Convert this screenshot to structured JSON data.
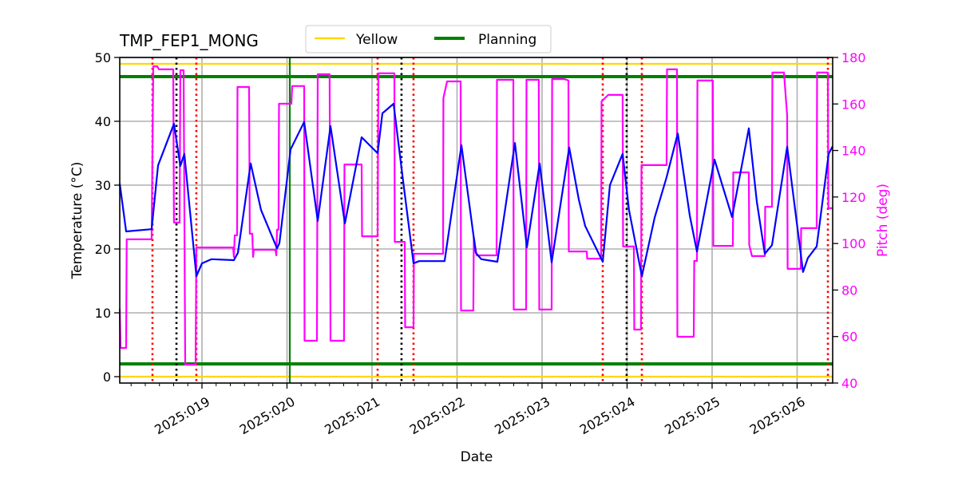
{
  "chart_data": {
    "type": "line",
    "title": "TMP_FEP1_MONG",
    "xlabel": "Date",
    "ylabel": "Temperature (°C)",
    "y2label": "Pitch (deg)",
    "xlim": [
      18.033,
      26.418
    ],
    "ylim": [
      -1,
      50
    ],
    "y2lim": [
      40,
      180
    ],
    "xticks": [
      19,
      20,
      21,
      22,
      23,
      24,
      25,
      26
    ],
    "xtick_labels": [
      "2025:019",
      "2025:020",
      "2025:021",
      "2025:022",
      "2025:023",
      "2025:024",
      "2025:025",
      "2025:026"
    ],
    "yticks": [
      0,
      10,
      20,
      30,
      40,
      50
    ],
    "y2ticks": [
      40,
      60,
      80,
      100,
      120,
      140,
      160,
      180
    ],
    "grid": true,
    "legend": {
      "placement": "top-center",
      "entries": [
        {
          "label": "Yellow",
          "color": "#ffd700"
        },
        {
          "label": "Planning",
          "color": "#008000"
        }
      ]
    },
    "limits": [
      {
        "name": "Yellow",
        "values": [
          49,
          0
        ],
        "color": "#ffd700"
      },
      {
        "name": "Planning",
        "values": [
          47,
          2
        ],
        "color": "#008000"
      }
    ],
    "vlines": [
      {
        "x": 18.418,
        "color": "#ff0000",
        "style": "dotted"
      },
      {
        "x": 18.934,
        "color": "#ff0000",
        "style": "dotted"
      },
      {
        "x": 21.066,
        "color": "#ff0000",
        "style": "dotted"
      },
      {
        "x": 21.488,
        "color": "#ff0000",
        "style": "dotted"
      },
      {
        "x": 23.714,
        "color": "#ff0000",
        "style": "dotted"
      },
      {
        "x": 24.174,
        "color": "#ff0000",
        "style": "dotted"
      },
      {
        "x": 26.362,
        "color": "#ff0000",
        "style": "dotted"
      },
      {
        "x": 18.7,
        "color": "#000000",
        "style": "dotted"
      },
      {
        "x": 21.347,
        "color": "#000000",
        "style": "dotted"
      },
      {
        "x": 23.995,
        "color": "#000000",
        "style": "dotted"
      },
      {
        "x": 20.033,
        "color": "#008000",
        "style": "solid"
      }
    ],
    "series": [
      {
        "axis": "left",
        "color": "#0000ff",
        "points": [
          [
            18.033,
            30.25
          ],
          [
            18.108,
            22.75
          ],
          [
            18.408,
            23.1
          ],
          [
            18.484,
            33.1
          ],
          [
            18.671,
            39.6
          ],
          [
            18.746,
            33
          ],
          [
            18.793,
            34.9
          ],
          [
            18.934,
            15.75
          ],
          [
            19.0,
            17.75
          ],
          [
            19.113,
            18.4
          ],
          [
            19.376,
            18.25
          ],
          [
            19.423,
            19.4
          ],
          [
            19.573,
            33.4
          ],
          [
            19.695,
            26.1
          ],
          [
            19.883,
            20.1
          ],
          [
            19.911,
            20.9
          ],
          [
            20.042,
            35.6
          ],
          [
            20.202,
            39.9
          ],
          [
            20.362,
            24.4
          ],
          [
            20.512,
            39.25
          ],
          [
            20.681,
            24
          ],
          [
            20.878,
            37.5
          ],
          [
            21.066,
            35
          ],
          [
            21.122,
            41.25
          ],
          [
            21.254,
            42.75
          ],
          [
            21.366,
            30.6
          ],
          [
            21.488,
            17.75
          ],
          [
            21.554,
            18.1
          ],
          [
            21.854,
            18.1
          ],
          [
            22.052,
            36.25
          ],
          [
            22.221,
            19.4
          ],
          [
            22.286,
            18.4
          ],
          [
            22.474,
            18
          ],
          [
            22.681,
            36.6
          ],
          [
            22.822,
            20.25
          ],
          [
            22.972,
            33.4
          ],
          [
            23.113,
            17.9
          ],
          [
            23.319,
            35.9
          ],
          [
            23.432,
            27.75
          ],
          [
            23.507,
            23.6
          ],
          [
            23.714,
            18
          ],
          [
            23.798,
            30
          ],
          [
            23.948,
            34.9
          ],
          [
            24.023,
            26.1
          ],
          [
            24.174,
            15.75
          ],
          [
            24.324,
            24.9
          ],
          [
            24.465,
            31.25
          ],
          [
            24.596,
            38.1
          ],
          [
            24.737,
            25.25
          ],
          [
            24.822,
            19.6
          ],
          [
            25.028,
            34
          ],
          [
            25.235,
            25
          ],
          [
            25.432,
            38.9
          ],
          [
            25.526,
            27.4
          ],
          [
            25.62,
            19.25
          ],
          [
            25.704,
            20.6
          ],
          [
            25.883,
            36
          ],
          [
            26.07,
            16.4
          ],
          [
            26.127,
            18.6
          ],
          [
            26.23,
            20.4
          ],
          [
            26.371,
            34.9
          ],
          [
            26.418,
            36.1
          ]
        ]
      },
      {
        "axis": "right",
        "color": "#ff00ff",
        "points": [
          [
            18.033,
            71.9
          ],
          [
            18.042,
            55.1
          ],
          [
            18.108,
            55.1
          ],
          [
            18.115,
            101.8
          ],
          [
            18.408,
            101.8
          ],
          [
            18.427,
            176.2
          ],
          [
            18.474,
            176.2
          ],
          [
            18.493,
            174.9
          ],
          [
            18.662,
            174.9
          ],
          [
            18.671,
            109
          ],
          [
            18.737,
            109
          ],
          [
            18.746,
            174.5
          ],
          [
            18.784,
            174.5
          ],
          [
            18.803,
            47.9
          ],
          [
            18.925,
            47.9
          ],
          [
            18.934,
            98.3
          ],
          [
            19.366,
            98.3
          ],
          [
            19.376,
            94.2
          ],
          [
            19.385,
            103.5
          ],
          [
            19.413,
            103.5
          ],
          [
            19.418,
            167.3
          ],
          [
            19.554,
            167.3
          ],
          [
            19.563,
            104.2
          ],
          [
            19.592,
            104.2
          ],
          [
            19.601,
            94.2
          ],
          [
            19.61,
            97.3
          ],
          [
            19.864,
            97.3
          ],
          [
            19.874,
            94.9
          ],
          [
            19.883,
            105.9
          ],
          [
            19.901,
            105.9
          ],
          [
            19.906,
            160.1
          ],
          [
            20.052,
            160.1
          ],
          [
            20.061,
            167.7
          ],
          [
            20.202,
            167.7
          ],
          [
            20.207,
            58.2
          ],
          [
            20.352,
            58.2
          ],
          [
            20.362,
            172.8
          ],
          [
            20.502,
            172.8
          ],
          [
            20.512,
            58.2
          ],
          [
            20.671,
            58.2
          ],
          [
            20.676,
            134
          ],
          [
            20.878,
            134
          ],
          [
            20.883,
            103.1
          ],
          [
            21.066,
            103.1
          ],
          [
            21.075,
            173.2
          ],
          [
            21.263,
            173.2
          ],
          [
            21.268,
            100.7
          ],
          [
            21.385,
            100.7
          ],
          [
            21.39,
            64
          ],
          [
            21.488,
            64
          ],
          [
            21.493,
            95.6
          ],
          [
            21.836,
            95.6
          ],
          [
            21.84,
            162.5
          ],
          [
            21.883,
            169.7
          ],
          [
            22.042,
            169.7
          ],
          [
            22.047,
            71.2
          ],
          [
            22.192,
            71.2
          ],
          [
            22.197,
            102.8
          ],
          [
            22.23,
            94.9
          ],
          [
            22.465,
            94.9
          ],
          [
            22.47,
            170.4
          ],
          [
            22.662,
            170.4
          ],
          [
            22.667,
            71.6
          ],
          [
            22.812,
            71.6
          ],
          [
            22.817,
            170.4
          ],
          [
            22.962,
            170.4
          ],
          [
            22.967,
            71.6
          ],
          [
            23.113,
            71.6
          ],
          [
            23.118,
            170.7
          ],
          [
            23.263,
            170.7
          ],
          [
            23.31,
            170.1
          ],
          [
            23.315,
            96.6
          ],
          [
            23.526,
            96.6
          ],
          [
            23.531,
            93.5
          ],
          [
            23.695,
            93.5
          ],
          [
            23.7,
            161.1
          ],
          [
            23.779,
            163.9
          ],
          [
            23.948,
            163.9
          ],
          [
            23.953,
            98.7
          ],
          [
            24.08,
            98.7
          ],
          [
            24.085,
            63
          ],
          [
            24.164,
            63
          ],
          [
            24.169,
            133.7
          ],
          [
            24.465,
            133.7
          ],
          [
            24.47,
            174.9
          ],
          [
            24.587,
            174.9
          ],
          [
            24.592,
            59.9
          ],
          [
            24.784,
            59.9
          ],
          [
            24.79,
            92.5
          ],
          [
            24.822,
            92.5
          ],
          [
            24.827,
            170.1
          ],
          [
            25.009,
            170.1
          ],
          [
            25.014,
            99
          ],
          [
            25.244,
            99
          ],
          [
            25.249,
            130.6
          ],
          [
            25.432,
            130.6
          ],
          [
            25.437,
            99.4
          ],
          [
            25.469,
            94.6
          ],
          [
            25.62,
            94.6
          ],
          [
            25.625,
            115.8
          ],
          [
            25.704,
            115.8
          ],
          [
            25.709,
            173.5
          ],
          [
            25.845,
            173.5
          ],
          [
            25.883,
            155
          ],
          [
            25.888,
            89.1
          ],
          [
            26.042,
            89.1
          ],
          [
            26.047,
            106.6
          ],
          [
            26.23,
            106.6
          ],
          [
            26.235,
            173.5
          ],
          [
            26.362,
            173.5
          ],
          [
            26.367,
            115.2
          ],
          [
            26.418,
            115.2
          ]
        ]
      }
    ]
  }
}
